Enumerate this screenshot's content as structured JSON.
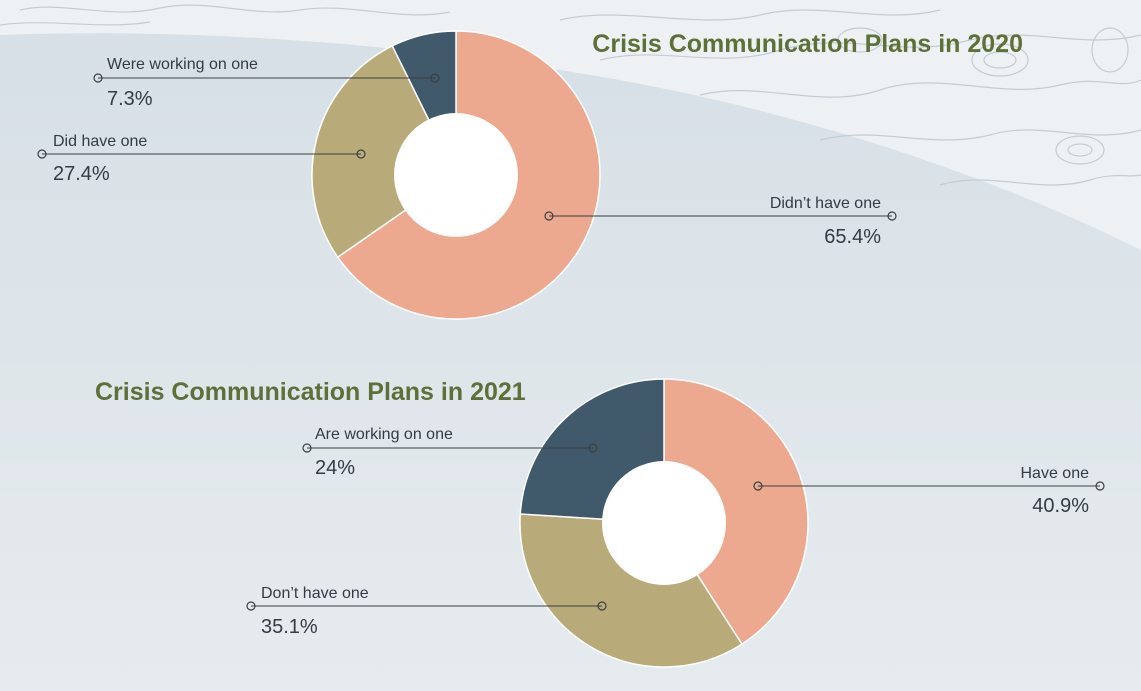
{
  "colors": {
    "salmon": "#eda98f",
    "khaki": "#b9ab79",
    "slate": "#415a6b",
    "title_green": "#5c7038",
    "text": "#333b44",
    "background": "#e2e8ec"
  },
  "chart_data": [
    {
      "type": "pie",
      "style": "donut",
      "title": "Crisis Communication Plans in 2020",
      "slices": [
        {
          "label": "Didn’t have one",
          "value": 65.4,
          "display": "65.4%",
          "color": "#eda98f"
        },
        {
          "label": "Did have one",
          "value": 27.4,
          "display": "27.4%",
          "color": "#b9ab79"
        },
        {
          "label": "Were working on one",
          "value": 7.3,
          "display": "7.3%",
          "color": "#415a6b"
        }
      ]
    },
    {
      "type": "pie",
      "style": "donut",
      "title": "Crisis Communication Plans in 2021",
      "slices": [
        {
          "label": "Have one",
          "value": 40.9,
          "display": "40.9%",
          "color": "#eda98f"
        },
        {
          "label": "Don’t have one",
          "value": 35.1,
          "display": "35.1%",
          "color": "#b9ab79"
        },
        {
          "label": "Are working on one",
          "value": 24,
          "display": "24%",
          "color": "#415a6b"
        }
      ]
    }
  ]
}
